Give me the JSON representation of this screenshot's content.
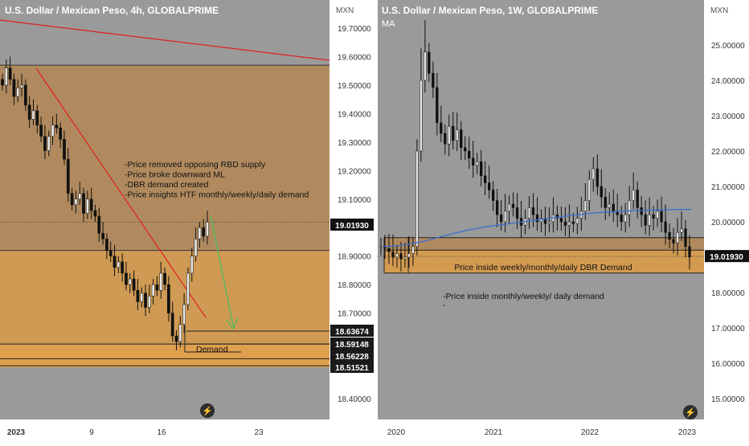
{
  "chart_data": [
    {
      "type": "candlestick",
      "title": "U.S. Dollar / Mexican Peso, 4h, GLOBALPRIME",
      "currency": "MXN",
      "y_ticks": [
        "19.70000",
        "19.60000",
        "19.50000",
        "19.40000",
        "19.30000",
        "19.20000",
        "19.10000",
        "18.90000",
        "18.80000",
        "18.70000",
        "18.40000"
      ],
      "y_tick_values": [
        19.7,
        19.6,
        19.5,
        19.4,
        19.3,
        19.2,
        19.1,
        18.9,
        18.8,
        18.7,
        18.4
      ],
      "ylim": [
        18.3,
        19.8
      ],
      "x_ticks": [
        "2023",
        "9",
        "16",
        "23"
      ],
      "price_labels": [
        {
          "text": "19.01930",
          "value": 19.0193,
          "highlight": true
        },
        {
          "text": "18.63674",
          "value": 18.63674
        },
        {
          "text": "18.59148",
          "value": 18.59148
        },
        {
          "text": "18.56228",
          "value": 18.56228
        },
        {
          "text": "18.51521",
          "value": 18.51521
        }
      ],
      "zones": [
        {
          "name": "supply",
          "from": 18.92,
          "to": 19.57,
          "color": "#b08a5e"
        },
        {
          "name": "demand-upper",
          "from": 18.59,
          "to": 18.92,
          "color": "#cf9a54"
        },
        {
          "name": "demand-lower",
          "from": 18.51,
          "to": 18.59,
          "color": "#dfa04e"
        }
      ],
      "notes": [
        "-Price removed opposing RBD supply",
        "-Price broke downward ML",
        "-DBR demand created",
        "-Price insights HTF monthly/weekly/daily demand"
      ],
      "demand_label": "Demand",
      "closes": [
        19.5,
        19.56,
        19.52,
        19.46,
        19.49,
        19.5,
        19.43,
        19.38,
        19.41,
        19.36,
        19.32,
        19.27,
        19.32,
        19.36,
        19.35,
        19.31,
        19.24,
        19.12,
        19.08,
        19.1,
        19.12,
        19.05,
        19.1,
        19.06,
        19.04,
        18.98,
        18.96,
        18.92,
        18.9,
        18.86,
        18.88,
        18.84,
        18.8,
        18.82,
        18.78,
        18.74,
        18.77,
        18.72,
        18.76,
        18.8,
        18.78,
        18.84,
        18.8,
        18.7,
        18.62,
        18.6,
        18.66,
        18.73,
        18.84,
        18.9,
        18.96,
        19.0,
        18.97,
        19.0193
      ]
    },
    {
      "type": "candlestick",
      "title": "U.S. Dollar / Mexican Peso, 1W, GLOBALPRIME",
      "subtitle": "MA",
      "currency": "MXN",
      "y_ticks": [
        "25.00000",
        "24.00000",
        "23.00000",
        "22.00000",
        "21.00000",
        "20.00000",
        "18.00000",
        "17.00000",
        "16.00000",
        "15.00000"
      ],
      "y_tick_values": [
        25,
        24,
        23,
        22,
        21,
        20,
        18,
        17,
        16,
        15
      ],
      "ylim": [
        14.6,
        25.7
      ],
      "x_ticks": [
        "2020",
        "2021",
        "2022",
        "2023"
      ],
      "price_labels": [
        {
          "text": "19.01930",
          "value": 19.0193,
          "highlight": true
        }
      ],
      "zones": [
        {
          "name": "weekly-zone",
          "from": 19.2,
          "to": 19.55,
          "color": "#b08a5e"
        },
        {
          "name": "dbr-demand",
          "from": 18.55,
          "to": 19.2,
          "color": "#d39b50"
        }
      ],
      "zone_label": "Price inside weekly/monthly/daily DBR Demand",
      "note": "-Price inside monthly/weekly/ daily demand",
      "note_dash": "-",
      "closes": [
        19.3,
        19.25,
        19.15,
        19.0,
        19.1,
        18.95,
        19.0,
        19.1,
        19.3,
        22.0,
        24.0,
        24.8,
        24.2,
        23.8,
        22.8,
        22.5,
        22.2,
        22.7,
        22.3,
        22.6,
        22.1,
        22.0,
        21.8,
        21.6,
        21.7,
        21.3,
        21.1,
        20.9,
        20.6,
        20.2,
        20.0,
        20.3,
        20.5,
        20.4,
        20.1,
        19.9,
        20.1,
        20.4,
        20.2,
        20.0,
        20.1,
        19.95,
        20.0,
        20.2,
        20.1,
        20.0,
        19.9,
        20.0,
        19.95,
        20.1,
        20.3,
        20.6,
        21.2,
        21.5,
        21.0,
        20.7,
        20.4,
        20.5,
        20.3,
        20.2,
        20.0,
        20.2,
        20.6,
        20.9,
        20.4,
        20.2,
        19.9,
        20.2,
        20.1,
        20.3,
        20.0,
        19.7,
        19.5,
        19.4,
        19.7,
        19.8,
        19.3,
        19.0
      ],
      "ma": [
        19.3,
        19.32,
        19.38,
        19.45,
        19.55,
        19.65,
        19.74,
        19.82,
        19.88,
        19.93,
        19.98,
        20.03,
        20.08,
        20.13,
        20.18,
        20.22,
        20.26,
        20.28,
        20.3,
        20.32,
        20.33,
        20.34,
        20.35,
        20.35
      ]
    }
  ]
}
